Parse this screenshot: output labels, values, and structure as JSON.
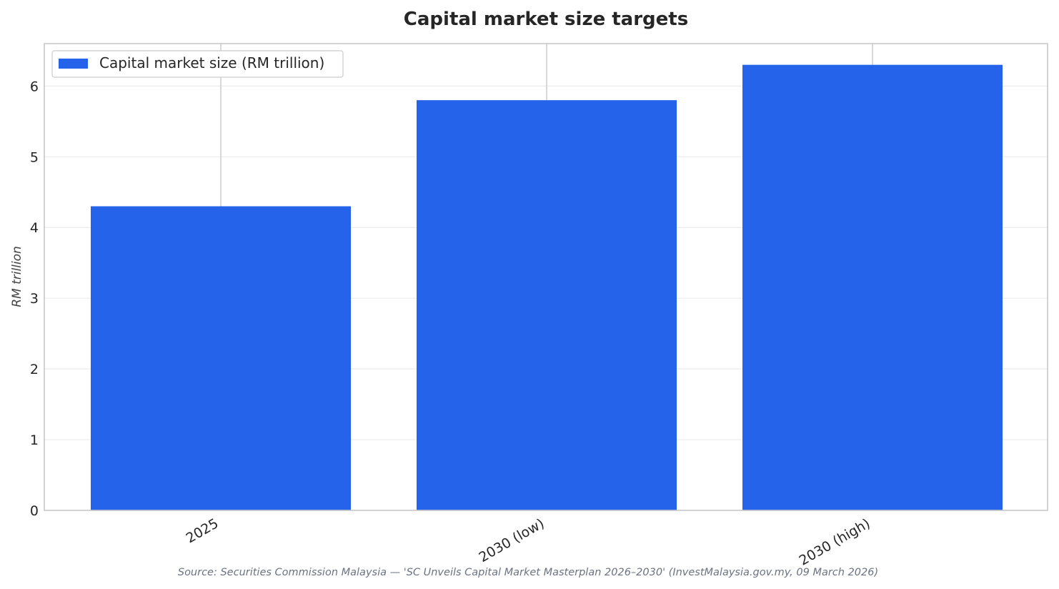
{
  "chart_data": {
    "type": "bar",
    "title": "Capital market size targets",
    "xlabel": "",
    "ylabel": "RM trillion",
    "categories": [
      "2025",
      "2030 (low)",
      "2030 (high)"
    ],
    "series": [
      {
        "name": "Capital market size (RM trillion)",
        "values": [
          4.3,
          5.8,
          6.3
        ],
        "color": "#2563eb"
      }
    ],
    "ylim": [
      0,
      6.6
    ],
    "yticks": [
      0,
      1,
      2,
      3,
      4,
      5,
      6
    ],
    "grid": true,
    "legend_position": "top-left",
    "source_note": "Source: Securities Commission Malaysia — 'SC Unveils Capital Market Masterplan 2026–2030' (InvestMalaysia.gov.my, 09 March 2026)"
  }
}
